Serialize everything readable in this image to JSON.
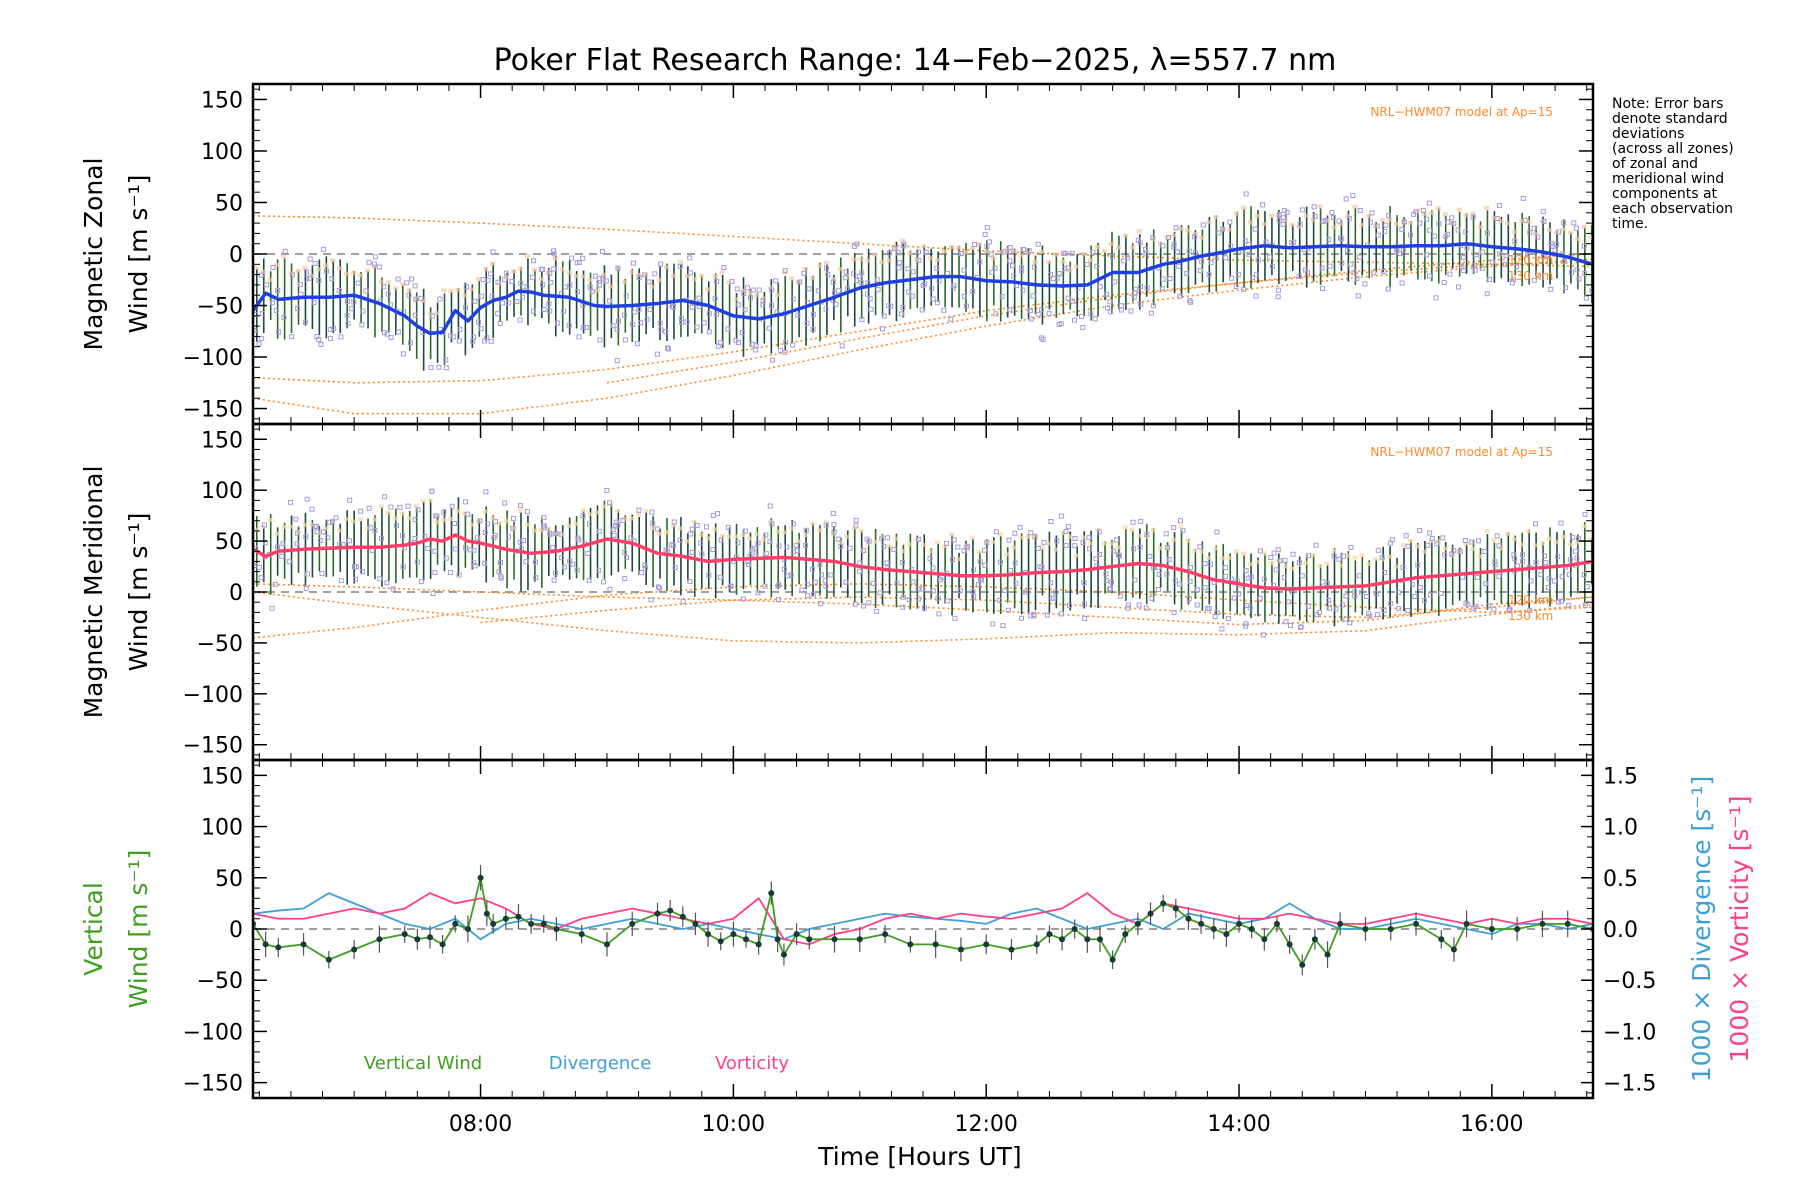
{
  "chart_data": {
    "type": "line",
    "title": "Poker Flat Research Range: 14−Feb−2025, λ=557.7 nm",
    "xlabel": "Time [Hours UT]",
    "x_range_hours": [
      6.2,
      16.8
    ],
    "x_ticks": [
      {
        "value": 8,
        "label": "08:00"
      },
      {
        "value": 10,
        "label": "10:00"
      },
      {
        "value": 12,
        "label": "12:00"
      },
      {
        "value": 14,
        "label": "14:00"
      },
      {
        "value": 16,
        "label": "16:00"
      }
    ],
    "note": [
      "Note: Error bars",
      "denote standard",
      "deviations",
      "(across all zones)",
      "of zonal and",
      "meridional wind",
      "components at",
      "each observation",
      "time."
    ],
    "colors": {
      "zonal": "#1f3fe0",
      "meridional": "#ff3f6a",
      "vertical": "#3fa020",
      "divergence": "#3fa0d8",
      "vorticity": "#ff3f8a",
      "model": "#ff8a2a",
      "scatter": "#a89ad8",
      "errorbar": "#1a4a3a",
      "zero": "#808080"
    },
    "panels": [
      {
        "id": "zonal",
        "ylabel_lines": [
          "Magnetic Zonal",
          "Wind [m s⁻¹]"
        ],
        "ylim": [
          -165,
          165
        ],
        "y_ticks": [
          150,
          100,
          50,
          0,
          -50,
          -100,
          -150
        ],
        "y_tick_labels": [
          "150",
          "100",
          "50",
          "0",
          "−50",
          "−100",
          "−150"
        ],
        "model_label": "NRL−HWM07 model at Ap=15",
        "model_alt_labels": [
          "120 km",
          "130 km"
        ],
        "series": {
          "x": [
            6.2,
            6.3,
            6.4,
            6.6,
            6.8,
            7.0,
            7.2,
            7.4,
            7.5,
            7.6,
            7.7,
            7.8,
            7.9,
            8.0,
            8.1,
            8.2,
            8.3,
            8.4,
            8.5,
            8.7,
            8.9,
            9.0,
            9.2,
            9.4,
            9.6,
            9.8,
            10.0,
            10.2,
            10.4,
            10.6,
            10.8,
            11.0,
            11.2,
            11.4,
            11.6,
            11.8,
            12.0,
            12.2,
            12.4,
            12.6,
            12.8,
            13.0,
            13.2,
            13.3,
            13.4,
            13.5,
            13.6,
            13.7,
            13.8,
            14.0,
            14.2,
            14.4,
            14.6,
            14.8,
            15.0,
            15.2,
            15.4,
            15.6,
            15.8,
            16.0,
            16.2,
            16.4,
            16.6,
            16.8
          ],
          "y": [
            -55,
            -38,
            -44,
            -42,
            -42,
            -40,
            -48,
            -60,
            -70,
            -77,
            -76,
            -55,
            -65,
            -52,
            -45,
            -42,
            -36,
            -37,
            -40,
            -42,
            -50,
            -51,
            -50,
            -48,
            -45,
            -50,
            -60,
            -63,
            -58,
            -50,
            -42,
            -33,
            -28,
            -25,
            -22,
            -22,
            -26,
            -27,
            -30,
            -31,
            -30,
            -18,
            -18,
            -14,
            -10,
            -8,
            -5,
            -2,
            0,
            5,
            8,
            6,
            7,
            8,
            7,
            7,
            8,
            8,
            10,
            7,
            5,
            2,
            -3,
            -10
          ]
        },
        "models": [
          {
            "label": "model-a",
            "x": [
              6.2,
              7.0,
              8.0,
              9.0,
              10.0,
              11.0,
              12.0,
              13.0,
              14.0,
              15.0,
              16.0,
              16.8
            ],
            "y": [
              37,
              35,
              30,
              24,
              17,
              10,
              3,
              -2,
              -6,
              -8,
              -10,
              -12
            ]
          },
          {
            "label": "model-b",
            "x": [
              6.2,
              7.0,
              8.0,
              9.0,
              10.0,
              11.0,
              12.0,
              13.0,
              14.0,
              15.0,
              16.0,
              16.8
            ],
            "y": [
              -120,
              -125,
              -123,
              -112,
              -95,
              -75,
              -55,
              -40,
              -28,
              -18,
              -10,
              -8
            ]
          },
          {
            "label": "model-c",
            "x": [
              6.2,
              7.0,
              8.0,
              9.0,
              10.0,
              11.0,
              12.0,
              13.0,
              14.0,
              15.0,
              16.0,
              16.8
            ],
            "y": [
              -140,
              -155,
              -155,
              -140,
              -118,
              -93,
              -70,
              -50,
              -35,
              -22,
              -12,
              -5
            ]
          },
          {
            "label": "model-d",
            "x": [
              9.0,
              10.0,
              11.0,
              12.0,
              13.0,
              14.0,
              15.0,
              16.0,
              16.8
            ],
            "y": [
              -125,
              -105,
              -82,
              -60,
              -42,
              -28,
              -16,
              -6,
              0
            ]
          }
        ]
      },
      {
        "id": "meridional",
        "ylabel_lines": [
          "Magnetic Meridional",
          "Wind [m s⁻¹]"
        ],
        "ylim": [
          -165,
          165
        ],
        "y_ticks": [
          150,
          100,
          50,
          0,
          -50,
          -100,
          -150
        ],
        "y_tick_labels": [
          "150",
          "100",
          "50",
          "0",
          "−50",
          "−100",
          "−150"
        ],
        "model_label": "NRL−HWM07 model at Ap=15",
        "model_alt_labels": [
          "120 km",
          "130 km"
        ],
        "series": {
          "x": [
            6.2,
            6.3,
            6.4,
            6.6,
            6.8,
            7.0,
            7.2,
            7.4,
            7.5,
            7.6,
            7.7,
            7.8,
            7.9,
            8.0,
            8.2,
            8.4,
            8.6,
            8.8,
            9.0,
            9.2,
            9.4,
            9.6,
            9.8,
            10.0,
            10.2,
            10.4,
            10.6,
            10.8,
            11.0,
            11.2,
            11.4,
            11.6,
            11.8,
            12.0,
            12.2,
            12.4,
            12.6,
            12.8,
            13.0,
            13.2,
            13.4,
            13.6,
            13.8,
            14.0,
            14.2,
            14.4,
            14.6,
            14.8,
            15.0,
            15.2,
            15.4,
            15.6,
            15.8,
            16.0,
            16.2,
            16.4,
            16.6,
            16.8
          ],
          "y": [
            42,
            35,
            40,
            42,
            43,
            44,
            44,
            46,
            48,
            52,
            50,
            56,
            50,
            48,
            42,
            38,
            40,
            45,
            52,
            48,
            38,
            35,
            30,
            32,
            33,
            34,
            32,
            30,
            25,
            22,
            20,
            18,
            16,
            16,
            17,
            19,
            20,
            22,
            25,
            28,
            26,
            20,
            12,
            8,
            4,
            3,
            4,
            5,
            6,
            10,
            14,
            16,
            18,
            20,
            22,
            24,
            26,
            30
          ]
        },
        "models": [
          {
            "label": "model-a",
            "x": [
              6.2,
              7.0,
              8.0,
              9.0,
              10.0,
              11.0,
              12.0,
              13.0,
              14.0,
              15.0,
              16.0,
              16.8
            ],
            "y": [
              -45,
              -35,
              -18,
              -3,
              5,
              8,
              5,
              0,
              -8,
              -15,
              -20,
              -15
            ]
          },
          {
            "label": "model-b",
            "x": [
              6.2,
              7.0,
              8.0,
              9.0,
              10.0,
              11.0,
              12.0,
              13.0,
              14.0,
              15.0,
              16.0,
              16.8
            ],
            "y": [
              0,
              -12,
              -25,
              -38,
              -48,
              -50,
              -46,
              -40,
              -42,
              -38,
              -22,
              -12
            ]
          },
          {
            "label": "model-c",
            "x": [
              6.2,
              7.0,
              8.0,
              9.0,
              10.0,
              11.0,
              12.0,
              13.0,
              14.0,
              15.0,
              16.0,
              16.8
            ],
            "y": [
              8,
              5,
              0,
              -5,
              -8,
              -12,
              -18,
              -25,
              -32,
              -28,
              -12,
              -5
            ]
          },
          {
            "label": "model-d",
            "x": [
              8.0,
              9.0,
              10.0,
              11.0,
              12.0,
              13.0,
              14.0,
              15.0,
              16.0,
              16.8
            ],
            "y": [
              -30,
              -18,
              -8,
              -5,
              -8,
              -15,
              -22,
              -25,
              -15,
              -5
            ]
          }
        ]
      },
      {
        "id": "vertical",
        "ylabel_lines": [
          "Vertical",
          "Wind [m s⁻¹]"
        ],
        "ylim": [
          -165,
          165
        ],
        "y_ticks": [
          150,
          100,
          50,
          0,
          -50,
          -100,
          -150
        ],
        "y_tick_labels": [
          "150",
          "100",
          "50",
          "0",
          "−50",
          "−100",
          "−150"
        ],
        "right_axis": {
          "label_divergence": "1000 × Divergence [s⁻¹]",
          "label_vorticity": "1000 × Vorticity [s⁻¹]",
          "ylim": [
            -1.65,
            1.65
          ],
          "ticks": [
            1.5,
            1.0,
            0.5,
            0.0,
            -0.5,
            -1.0,
            -1.5
          ],
          "tick_labels": [
            "1.5",
            "1.0",
            "0.5",
            "0.0",
            "−0.5",
            "−1.0",
            "−1.5"
          ]
        },
        "legend": [
          "Vertical Wind",
          "Divergence",
          "Vorticity"
        ],
        "vertical_wind": {
          "x": [
            6.2,
            6.3,
            6.4,
            6.6,
            6.8,
            7.0,
            7.2,
            7.4,
            7.5,
            7.6,
            7.7,
            7.8,
            7.9,
            8.0,
            8.05,
            8.1,
            8.2,
            8.3,
            8.4,
            8.5,
            8.6,
            8.8,
            9.0,
            9.2,
            9.4,
            9.5,
            9.6,
            9.7,
            9.8,
            9.9,
            10.0,
            10.1,
            10.2,
            10.3,
            10.35,
            10.4,
            10.5,
            10.6,
            10.8,
            11.0,
            11.2,
            11.4,
            11.6,
            11.8,
            12.0,
            12.2,
            12.4,
            12.5,
            12.6,
            12.7,
            12.8,
            12.9,
            13.0,
            13.1,
            13.2,
            13.3,
            13.4,
            13.5,
            13.6,
            13.7,
            13.8,
            13.9,
            14.0,
            14.1,
            14.2,
            14.3,
            14.4,
            14.5,
            14.6,
            14.7,
            14.8,
            15.0,
            15.2,
            15.4,
            15.6,
            15.7,
            15.8,
            16.0,
            16.2,
            16.4,
            16.6,
            16.8
          ],
          "y": [
            5,
            -15,
            -18,
            -15,
            -30,
            -20,
            -10,
            -5,
            -10,
            -8,
            -15,
            5,
            0,
            50,
            15,
            5,
            10,
            12,
            5,
            5,
            0,
            -5,
            -15,
            5,
            15,
            18,
            12,
            5,
            -5,
            -12,
            -5,
            -10,
            -15,
            35,
            -10,
            -25,
            -5,
            -10,
            -10,
            -10,
            -5,
            -15,
            -15,
            -20,
            -15,
            -20,
            -15,
            -5,
            -10,
            0,
            -10,
            -10,
            -30,
            -5,
            5,
            15,
            25,
            20,
            10,
            5,
            0,
            -5,
            5,
            0,
            -10,
            5,
            -15,
            -35,
            -10,
            -25,
            5,
            0,
            0,
            5,
            -10,
            -20,
            5,
            0,
            0,
            5,
            5,
            0
          ]
        },
        "divergence": {
          "x": [
            6.2,
            6.4,
            6.6,
            6.8,
            7.0,
            7.2,
            7.4,
            7.6,
            7.8,
            8.0,
            8.2,
            8.4,
            8.6,
            8.8,
            9.0,
            9.2,
            9.4,
            9.6,
            9.8,
            10.0,
            10.2,
            10.4,
            10.6,
            10.8,
            11.0,
            11.2,
            11.4,
            11.6,
            11.8,
            12.0,
            12.2,
            12.4,
            12.6,
            12.8,
            13.0,
            13.2,
            13.4,
            13.6,
            13.8,
            14.0,
            14.2,
            14.4,
            14.6,
            14.8,
            15.0,
            15.2,
            15.4,
            15.6,
            15.8,
            16.0,
            16.2,
            16.4,
            16.6,
            16.8
          ],
          "y": [
            0.15,
            0.18,
            0.2,
            0.35,
            0.25,
            0.15,
            0.05,
            0.0,
            0.1,
            -0.1,
            0.05,
            0.1,
            0.05,
            0.0,
            0.05,
            0.1,
            0.05,
            0.0,
            0.05,
            0.0,
            -0.05,
            -0.1,
            0.0,
            0.05,
            0.1,
            0.15,
            0.12,
            0.1,
            0.08,
            0.05,
            0.15,
            0.2,
            0.1,
            0.0,
            0.05,
            0.1,
            0.0,
            0.15,
            0.1,
            0.05,
            0.1,
            0.25,
            0.1,
            0.0,
            0.0,
            0.05,
            0.1,
            0.05,
            0.0,
            -0.05,
            0.05,
            0.05,
            0.0,
            0.05
          ]
        },
        "vorticity": {
          "x": [
            6.2,
            6.4,
            6.6,
            6.8,
            7.0,
            7.2,
            7.4,
            7.6,
            7.8,
            8.0,
            8.2,
            8.4,
            8.6,
            8.8,
            9.0,
            9.2,
            9.4,
            9.6,
            9.8,
            10.0,
            10.2,
            10.4,
            10.6,
            10.8,
            11.0,
            11.2,
            11.4,
            11.6,
            11.8,
            12.0,
            12.2,
            12.4,
            12.6,
            12.8,
            13.0,
            13.2,
            13.4,
            13.6,
            13.8,
            14.0,
            14.2,
            14.4,
            14.6,
            14.8,
            15.0,
            15.2,
            15.4,
            15.6,
            15.8,
            16.0,
            16.2,
            16.4,
            16.6,
            16.8
          ],
          "y": [
            0.15,
            0.1,
            0.1,
            0.15,
            0.2,
            0.15,
            0.2,
            0.35,
            0.25,
            0.3,
            0.2,
            0.05,
            0.0,
            0.1,
            0.15,
            0.2,
            0.15,
            0.1,
            0.05,
            0.1,
            0.3,
            -0.1,
            -0.15,
            -0.05,
            0.0,
            0.1,
            0.15,
            0.1,
            0.15,
            0.12,
            0.1,
            0.15,
            0.2,
            0.35,
            0.15,
            0.05,
            0.25,
            0.2,
            0.15,
            0.1,
            0.1,
            0.15,
            0.1,
            0.05,
            0.05,
            0.1,
            0.15,
            0.1,
            0.05,
            0.1,
            0.05,
            0.1,
            0.1,
            0.05
          ]
        }
      }
    ]
  }
}
